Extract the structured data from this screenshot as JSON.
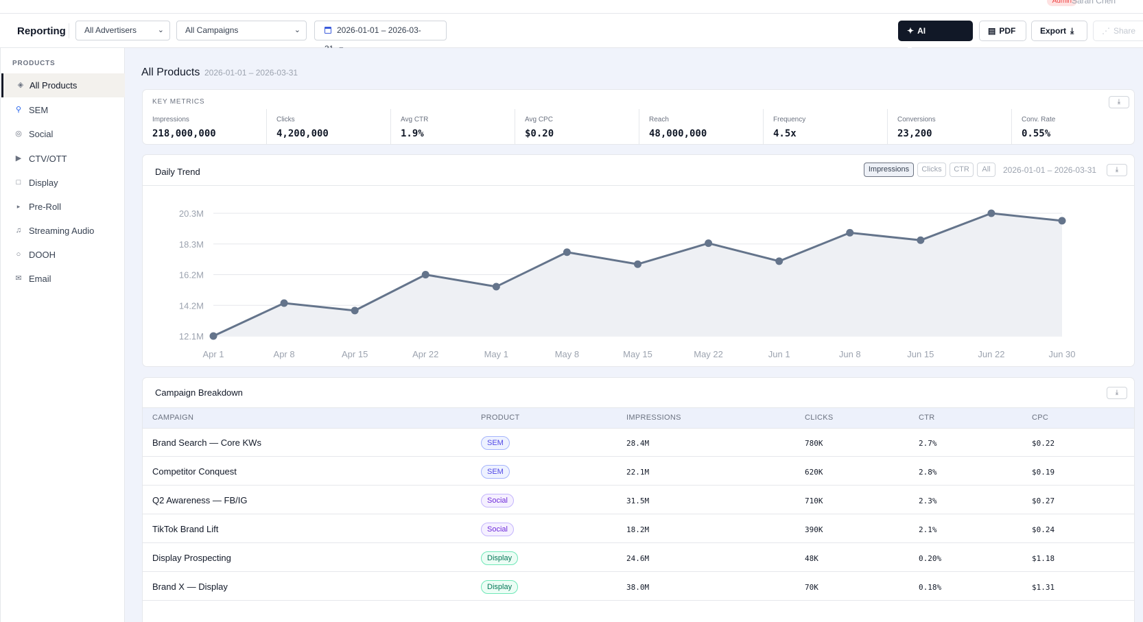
{
  "topbar": {
    "user_name": "Sarah Chen",
    "role_badge": "Admin"
  },
  "toolbar": {
    "title": "Reporting",
    "advertiser_select": "All Advertisers",
    "campaign_select": "All Campaigns",
    "date_range": "2026-01-01 – 2026-03-31",
    "ai_summary_label": "AI Summary",
    "pdf_label": "PDF",
    "export_label": "Export",
    "share_label": "Share"
  },
  "sidebar": {
    "heading": "PRODUCTS",
    "items": [
      {
        "label": "All Products",
        "icon": "diamond-icon",
        "active": true
      },
      {
        "label": "SEM",
        "icon": "search-icon"
      },
      {
        "label": "Social",
        "icon": "social-icon"
      },
      {
        "label": "CTV/OTT",
        "icon": "play-icon"
      },
      {
        "label": "Display",
        "icon": "display-icon"
      },
      {
        "label": "Pre-Roll",
        "icon": "preroll-icon"
      },
      {
        "label": "Streaming Audio",
        "icon": "music-icon"
      },
      {
        "label": "DOOH",
        "icon": "circle-icon"
      },
      {
        "label": "Email",
        "icon": "mail-icon"
      }
    ]
  },
  "main": {
    "title": "All Products",
    "range": "2026-01-01 – 2026-03-31",
    "key_metrics": {
      "heading": "KEY METRICS",
      "items": [
        {
          "label": "Impressions",
          "value": "218,000,000"
        },
        {
          "label": "Clicks",
          "value": "4,200,000"
        },
        {
          "label": "Avg CTR",
          "value": "1.9%"
        },
        {
          "label": "Avg CPC",
          "value": "$0.20"
        },
        {
          "label": "Reach",
          "value": "48,000,000"
        },
        {
          "label": "Frequency",
          "value": "4.5x"
        },
        {
          "label": "Conversions",
          "value": "23,200"
        },
        {
          "label": "Conv. Rate",
          "value": "0.55%"
        }
      ]
    },
    "daily_trend": {
      "title": "Daily Trend",
      "toggles": [
        "Impressions",
        "Clicks",
        "CTR",
        "All"
      ],
      "active_toggle": "Impressions",
      "range": "2026-01-01 – 2026-03-31"
    },
    "breakdown": {
      "title": "Campaign Breakdown",
      "columns": [
        "CAMPAIGN",
        "PRODUCT",
        "IMPRESSIONS",
        "CLICKS",
        "CTR",
        "CPC"
      ],
      "rows": [
        {
          "campaign": "Brand Search — Core KWs",
          "product": "SEM",
          "impressions": "28.4M",
          "clicks": "780K",
          "ctr": "2.7%",
          "cpc": "$0.22"
        },
        {
          "campaign": "Competitor Conquest",
          "product": "SEM",
          "impressions": "22.1M",
          "clicks": "620K",
          "ctr": "2.8%",
          "cpc": "$0.19"
        },
        {
          "campaign": "Q2 Awareness — FB/IG",
          "product": "Social",
          "impressions": "31.5M",
          "clicks": "710K",
          "ctr": "2.3%",
          "cpc": "$0.27"
        },
        {
          "campaign": "TikTok Brand Lift",
          "product": "Social",
          "impressions": "18.2M",
          "clicks": "390K",
          "ctr": "2.1%",
          "cpc": "$0.24"
        },
        {
          "campaign": "Display Prospecting",
          "product": "Display",
          "impressions": "24.6M",
          "clicks": "48K",
          "ctr": "0.20%",
          "cpc": "$1.18"
        },
        {
          "campaign": "Brand X — Display",
          "product": "Display",
          "impressions": "38.0M",
          "clicks": "70K",
          "ctr": "0.18%",
          "cpc": "$1.31"
        }
      ]
    }
  },
  "product_colors": {
    "SEM": {
      "bg": "#eef2ff",
      "border": "#a5b4fc",
      "text": "#4f46e5"
    },
    "Social": {
      "bg": "#f5f0ff",
      "border": "#c4b5fd",
      "text": "#6d28d9"
    },
    "Display": {
      "bg": "#ecfdf5",
      "border": "#6ee7b7",
      "text": "#047857"
    }
  },
  "chart_data": {
    "type": "area",
    "title": "",
    "x": [
      "Apr 1",
      "Apr 8",
      "Apr 15",
      "Apr 22",
      "May 1",
      "May 8",
      "May 15",
      "May 22",
      "Jun 1",
      "Jun 8",
      "Jun 15",
      "Jun 22",
      "Jun 30"
    ],
    "series": [
      {
        "values": [
          12.1,
          14.3,
          13.8,
          16.2,
          15.4,
          17.7,
          16.9,
          18.3,
          17.1,
          19.0,
          18.5,
          20.3,
          19.8
        ]
      }
    ],
    "y_ticks": [
      "12.1M",
      "14.2M",
      "16.2M",
      "18.3M",
      "20.3M"
    ],
    "ylim": [
      12.1,
      20.3
    ],
    "grid": true,
    "color": "#64748b"
  }
}
